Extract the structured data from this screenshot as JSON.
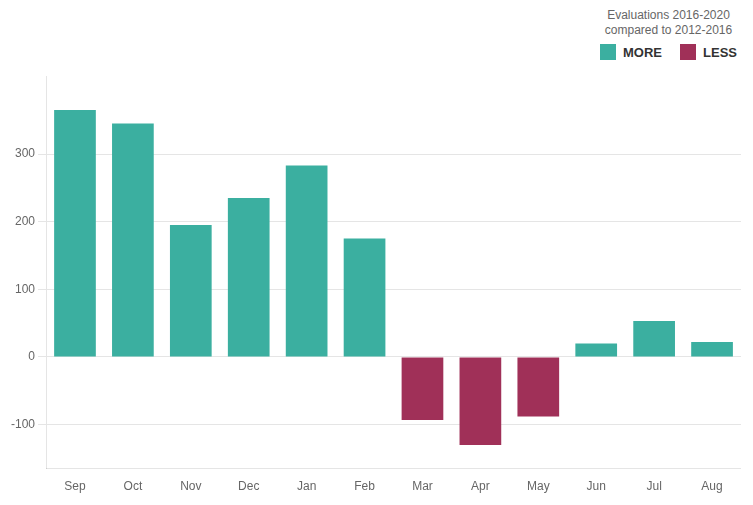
{
  "chart_data": {
    "type": "bar",
    "categories": [
      "Sep",
      "Oct",
      "Nov",
      "Dec",
      "Jan",
      "Feb",
      "Mar",
      "Apr",
      "May",
      "Jun",
      "Jul",
      "Aug"
    ],
    "series": [
      {
        "name": "MORE",
        "color": "#3BAFA0",
        "values": [
          365,
          345,
          195,
          235,
          283,
          175,
          null,
          null,
          null,
          20,
          53,
          22
        ]
      },
      {
        "name": "LESS",
        "color": "#A03058",
        "values": [
          null,
          null,
          null,
          null,
          null,
          null,
          -93,
          -130,
          -88,
          null,
          null,
          null
        ]
      }
    ],
    "legend_title": "Evaluations 2016-2020\ncompared to 2012-2016",
    "legend": "upper right",
    "ylim": [
      -165,
      415
    ],
    "yticks": [
      -100,
      0,
      100,
      200,
      300
    ],
    "grid": true
  }
}
